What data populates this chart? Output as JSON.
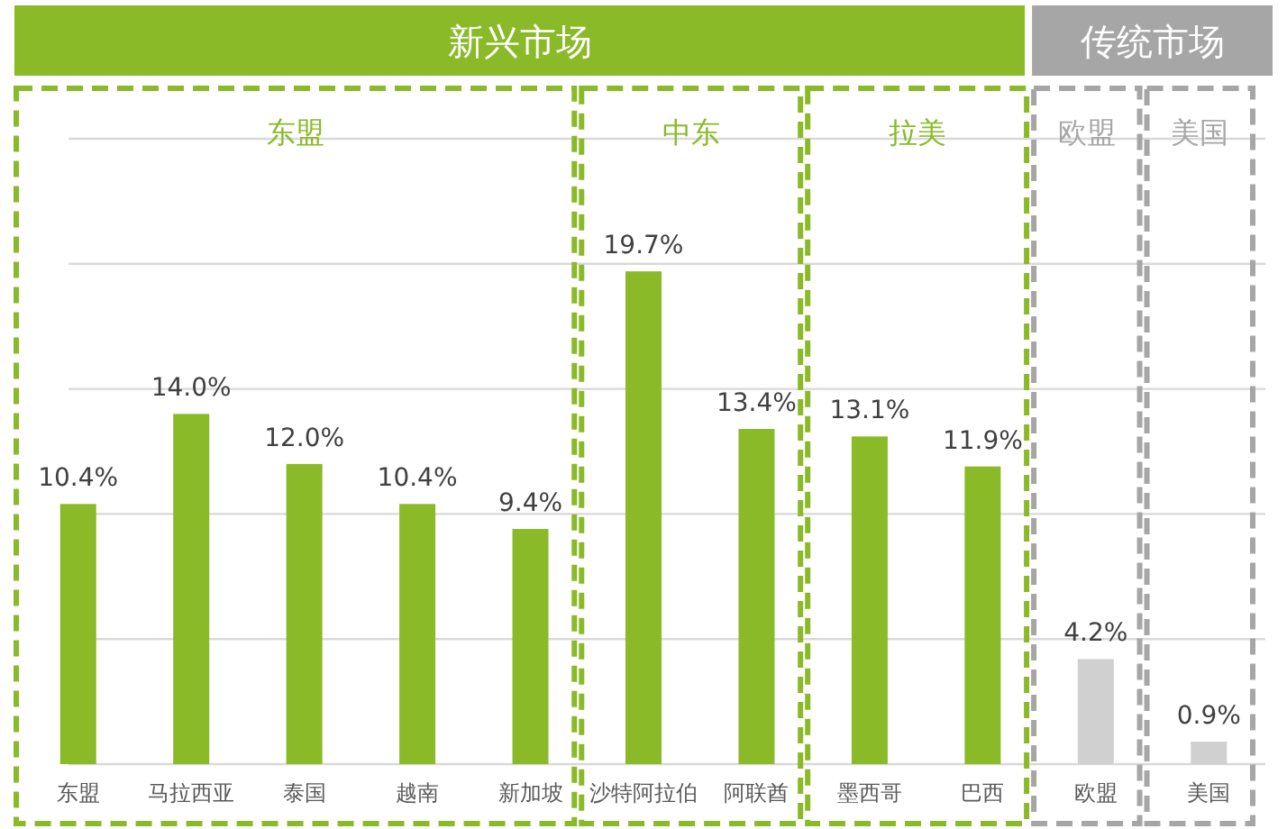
{
  "chart_data": {
    "type": "bar",
    "categories": [
      "东盟",
      "马拉西亚",
      "泰国",
      "越南",
      "新加坡",
      "沙特阿拉伯",
      "阿联酋",
      "墨西哥",
      "巴西",
      "欧盟",
      "美国"
    ],
    "values": [
      10.4,
      14.0,
      12.0,
      10.4,
      9.4,
      19.7,
      13.4,
      13.1,
      11.9,
      4.2,
      0.9
    ],
    "value_labels": [
      "10.4%",
      "14.0%",
      "12.0%",
      "10.4%",
      "9.4%",
      "19.7%",
      "13.4%",
      "13.1%",
      "11.9%",
      "4.2%",
      "0.9%"
    ],
    "colors": [
      "#8aba28",
      "#8aba28",
      "#8aba28",
      "#8aba28",
      "#8aba28",
      "#8aba28",
      "#8aba28",
      "#8aba28",
      "#8aba28",
      "#d0d0d0",
      "#d0d0d0"
    ],
    "ylim": [
      0,
      25
    ],
    "yticks": [
      {
        "value": 0,
        "label": null
      },
      {
        "value": 5,
        "label": null
      },
      {
        "value": 10,
        "label": null
      },
      {
        "value": 15,
        "label": null
      },
      {
        "value": 20,
        "label": null
      },
      {
        "value": 25,
        "label": null
      }
    ],
    "tick_labels": "x",
    "grid": "y",
    "annotations": [
      "新兴市场",
      "传统市场",
      "东盟",
      "中东",
      "拉美",
      "欧盟",
      "美国"
    ]
  }
}
